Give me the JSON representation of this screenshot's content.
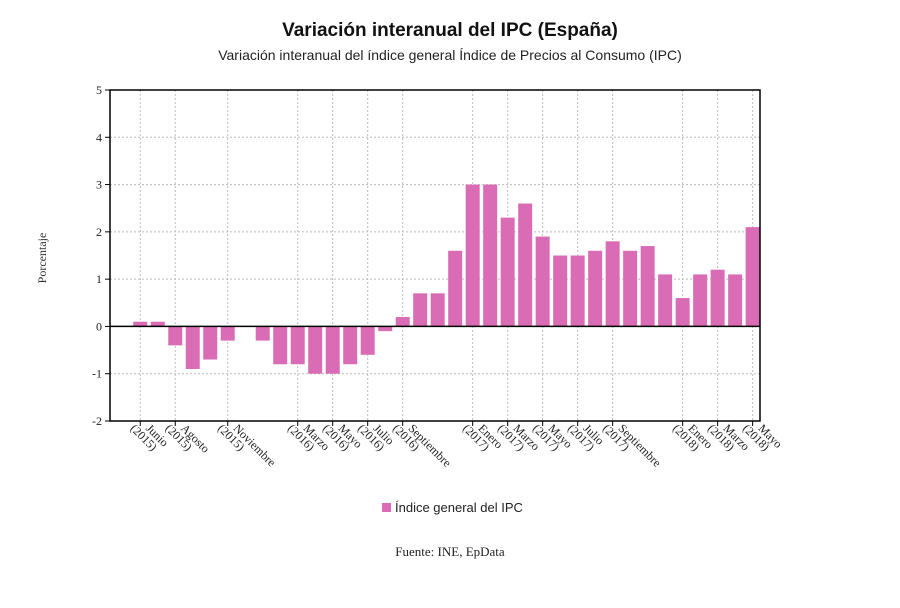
{
  "chart_data": {
    "type": "bar",
    "title": "Variación interanual del IPC (España)",
    "subtitle": "Variación interanual del índice general Índice de Precios al Consumo (IPC)",
    "ylabel": "Porcentaje",
    "xlabel": "",
    "ylim": [
      -2,
      5
    ],
    "yticks": [
      -2,
      -1,
      0,
      1,
      2,
      3,
      4,
      5
    ],
    "grid": true,
    "legend_placement": "bottom-center",
    "source": "Fuente: INE, EpData",
    "bar_color": "#d96cb5",
    "x_tick_labels": [
      {
        "index": 1,
        "line1": "Junio",
        "line2": "(2015)"
      },
      {
        "index": 3,
        "line1": "Agosto",
        "line2": "(2015)"
      },
      {
        "index": 6,
        "line1": "Noviembre",
        "line2": "(2015)"
      },
      {
        "index": 10,
        "line1": "Marzo",
        "line2": "(2016)"
      },
      {
        "index": 12,
        "line1": "Mayo",
        "line2": "(2016)"
      },
      {
        "index": 14,
        "line1": "Julio",
        "line2": "(2016)"
      },
      {
        "index": 16,
        "line1": "Septiembre",
        "line2": "(2016)"
      },
      {
        "index": 20,
        "line1": "Enero",
        "line2": "(2017)"
      },
      {
        "index": 22,
        "line1": "Marzo",
        "line2": "(2017)"
      },
      {
        "index": 24,
        "line1": "Mayo",
        "line2": "(2017)"
      },
      {
        "index": 26,
        "line1": "Julio",
        "line2": "(2017)"
      },
      {
        "index": 28,
        "line1": "Septiembre",
        "line2": "(2017)"
      },
      {
        "index": 32,
        "line1": "Enero",
        "line2": "(2018)"
      },
      {
        "index": 34,
        "line1": "Marzo",
        "line2": "(2018)"
      },
      {
        "index": 36,
        "line1": "Mayo",
        "line2": "(2018)"
      }
    ],
    "series": [
      {
        "name": "Índice general del IPC",
        "values": [
          0.0,
          0.1,
          0.1,
          -0.4,
          -0.9,
          -0.7,
          -0.3,
          0.0,
          -0.3,
          -0.8,
          -0.8,
          -1.0,
          -1.0,
          -0.8,
          -0.6,
          -0.1,
          0.2,
          0.7,
          0.7,
          1.6,
          3.0,
          3.0,
          2.3,
          2.6,
          1.9,
          1.5,
          1.5,
          1.6,
          1.8,
          1.6,
          1.7,
          1.1,
          0.6,
          1.1,
          1.2,
          1.1,
          2.1
        ]
      }
    ]
  }
}
